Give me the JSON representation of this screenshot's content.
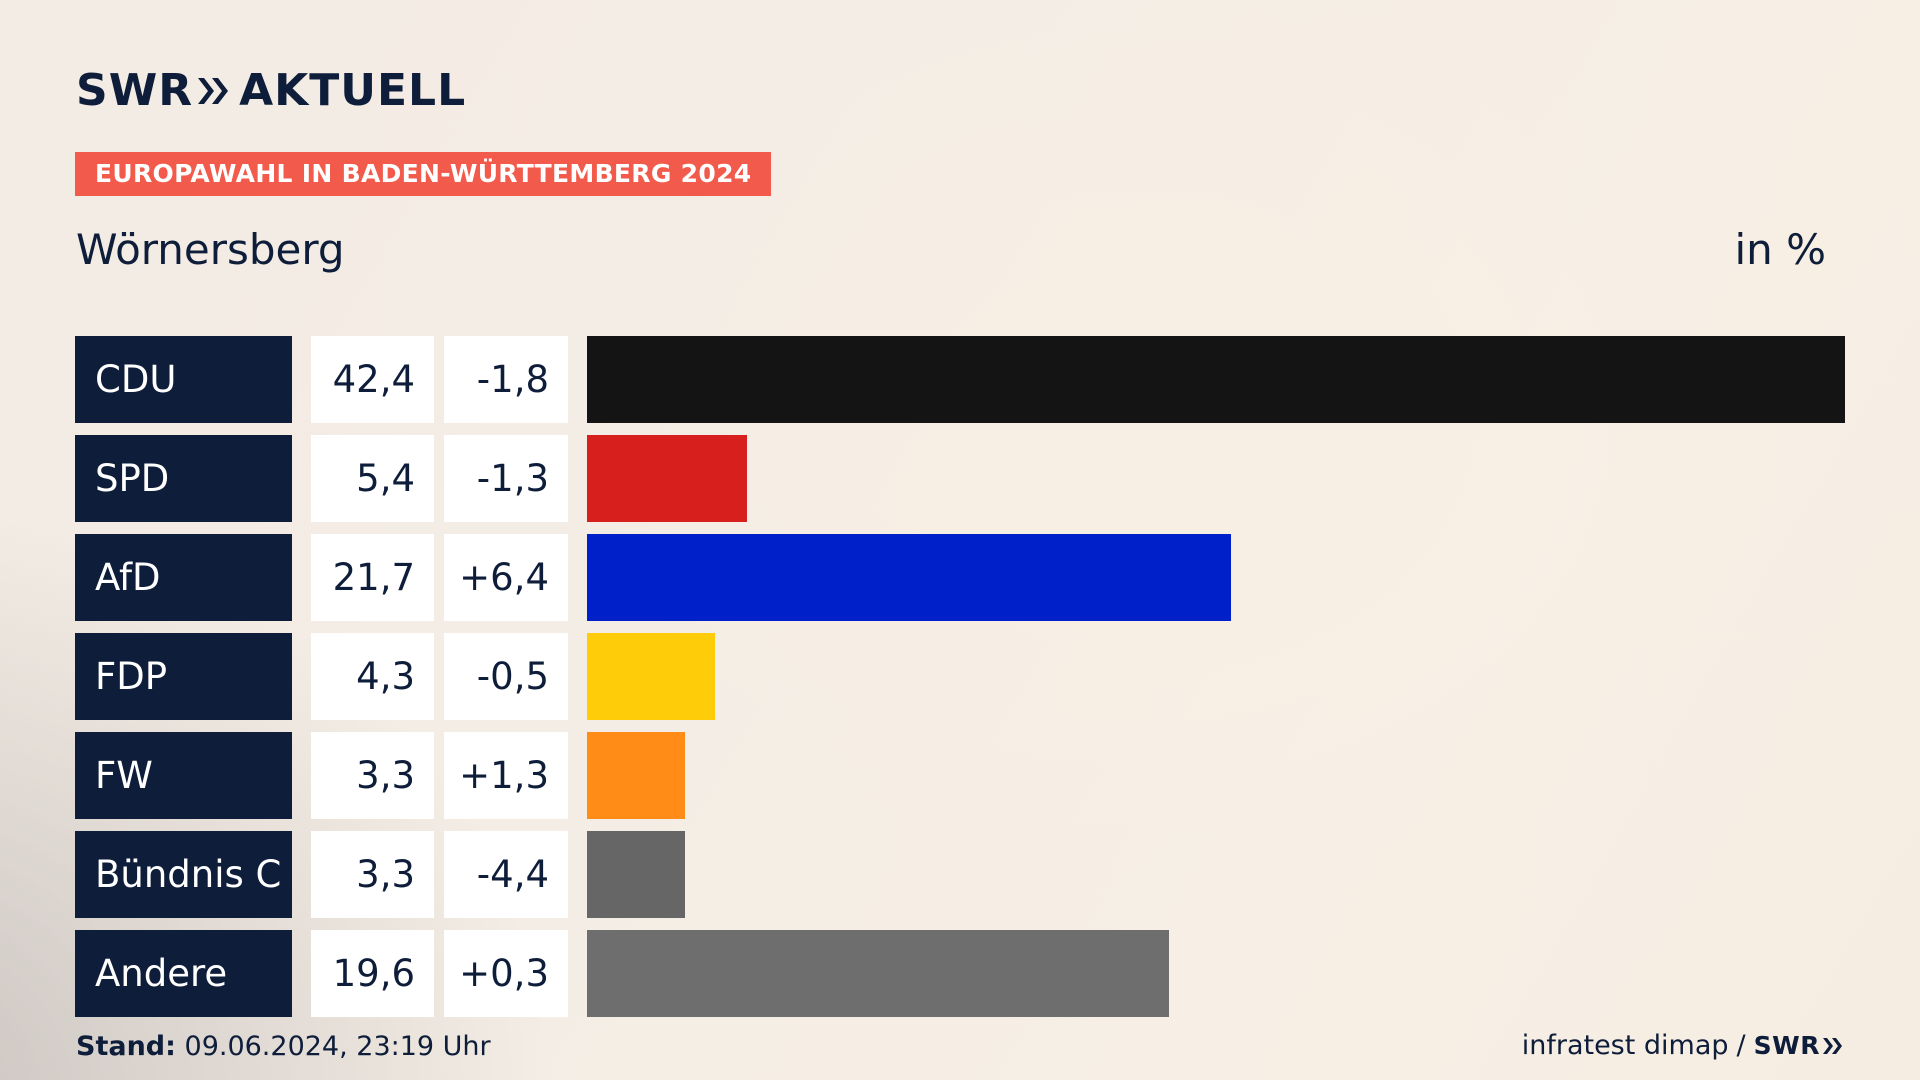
{
  "header": {
    "brand": "SWR",
    "brand_suffix": "AKTUELL",
    "tag": "EUROPAWAHL IN BADEN-WÜRTTEMBERG 2024",
    "place": "Wörnersberg",
    "unit": "in %"
  },
  "footer": {
    "stand_label": "Stand:",
    "stand_value": "09.06.2024, 23:19 Uhr",
    "source": "infratest dimap",
    "separator": "/",
    "source_brand": "SWR"
  },
  "colors": {
    "navy": "#0e1d3a",
    "tag": "#f25a4b"
  },
  "chart_data": {
    "type": "bar",
    "title": "Wörnersberg",
    "ylabel": "in %",
    "xlim": [
      0,
      42.4
    ],
    "categories": [
      "CDU",
      "SPD",
      "AfD",
      "FDP",
      "FW",
      "Bündnis C",
      "Andere"
    ],
    "values": [
      42.4,
      5.4,
      21.7,
      4.3,
      3.3,
      3.3,
      19.6
    ],
    "rows": [
      {
        "party": "CDU",
        "value": 42.4,
        "value_label": "42,4",
        "diff_label": "-1,8",
        "color": "#141414"
      },
      {
        "party": "SPD",
        "value": 5.4,
        "value_label": "5,4",
        "diff_label": "-1,3",
        "color": "#d7201e"
      },
      {
        "party": "AfD",
        "value": 21.7,
        "value_label": "21,7",
        "diff_label": "+6,4",
        "color": "#0020c9"
      },
      {
        "party": "FDP",
        "value": 4.3,
        "value_label": "4,3",
        "diff_label": "-0,5",
        "color": "#ffcc0a"
      },
      {
        "party": "FW",
        "value": 3.3,
        "value_label": "3,3",
        "diff_label": "+1,3",
        "color": "#ff8c17"
      },
      {
        "party": "Bündnis C",
        "value": 3.3,
        "value_label": "3,3",
        "diff_label": "-4,4",
        "color": "#666666"
      },
      {
        "party": "Andere",
        "value": 19.6,
        "value_label": "19,6",
        "diff_label": "+0,3",
        "color": "#6e6e6e"
      }
    ]
  }
}
